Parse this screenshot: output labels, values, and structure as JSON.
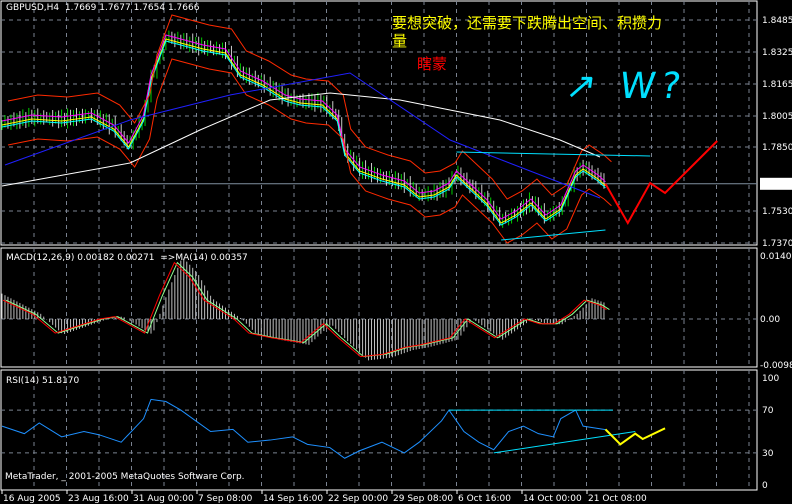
{
  "window": {
    "symbol_header": "GBPUSD,H4  1.7669 1.7677 1.7654 1.7666",
    "copyright": "MetaTrader, _ 2001-2005 MetaQuotes Software Corp."
  },
  "annotations": {
    "yellow_note_line1": "要想突破，还需要下跌腾出空间、积攒力",
    "yellow_note_line2": "量",
    "red_note": "瞎蒙",
    "cyan_scribble": "↗ W?"
  },
  "colors": {
    "background": "#000000",
    "grid": "#7a8290",
    "bollinger": "#ff2a00",
    "ma_long": "#ffffff",
    "trend_blue": "#2020ff",
    "channel": "#00e0ff",
    "projection_red": "#ff0000",
    "projection_yellow": "#ffff00",
    "rsi": "#1e90ff",
    "macd_main": "#ff0000",
    "macd_signal": "#90ff90",
    "macd_hist": "#c0c0c0"
  },
  "chart_data": [
    {
      "type": "line",
      "title": "GBPUSD,H4",
      "price_axis_ticks": [
        "1.8485",
        "1.8325",
        "1.8165",
        "1.8005",
        "1.7850",
        "1.7666",
        "1.7530",
        "1.7370"
      ],
      "current_price": "1.7666",
      "ylim": [
        1.737,
        1.8485
      ],
      "time_axis_ticks": [
        "16 Aug 2005",
        "23 Aug 16:00",
        "31 Aug 00:00",
        "7 Sep 08:00",
        "14 Sep 16:00",
        "22 Sep 00:00",
        "29 Sep 08:00",
        "6 Oct 16:00",
        "14 Oct 00:00",
        "21 Oct 08:00"
      ],
      "close_approx": [
        [
          0,
          1.797
        ],
        [
          4,
          1.8
        ],
        [
          8,
          1.799
        ],
        [
          12,
          1.801
        ],
        [
          15,
          1.795
        ],
        [
          17,
          1.786
        ],
        [
          19,
          1.8
        ],
        [
          20,
          1.82
        ],
        [
          22,
          1.84
        ],
        [
          24,
          1.838
        ],
        [
          27,
          1.835
        ],
        [
          30,
          1.833
        ],
        [
          32,
          1.822
        ],
        [
          35,
          1.817
        ],
        [
          38,
          1.81
        ],
        [
          40,
          1.808
        ],
        [
          43,
          1.807
        ],
        [
          45,
          1.8
        ],
        [
          46,
          1.783
        ],
        [
          48,
          1.774
        ],
        [
          51,
          1.77
        ],
        [
          54,
          1.767
        ],
        [
          56,
          1.761
        ],
        [
          58,
          1.762
        ],
        [
          60,
          1.766
        ],
        [
          61,
          1.772
        ],
        [
          63,
          1.765
        ],
        [
          65,
          1.758
        ],
        [
          67,
          1.748
        ],
        [
          69,
          1.752
        ],
        [
          71,
          1.758
        ],
        [
          73,
          1.75
        ],
        [
          75,
          1.755
        ],
        [
          77,
          1.772
        ],
        [
          78,
          1.775
        ],
        [
          80,
          1.77
        ],
        [
          81,
          1.7666
        ]
      ],
      "projection_red": [
        [
          81,
          1.7666
        ],
        [
          84,
          1.747
        ],
        [
          87,
          1.767
        ],
        [
          89,
          1.762
        ],
        [
          96,
          1.788
        ]
      ],
      "channel_upper": [
        [
          61,
          1.7825
        ],
        [
          87,
          1.7805
        ]
      ],
      "channel_lower": [
        [
          67,
          1.7385
        ],
        [
          81,
          1.7435
        ]
      ]
    },
    {
      "type": "bar",
      "title": "MACD(12,26,9) 0.00182 0.00271  =>MA(14) 0.00357",
      "ticks": [
        "0.01405",
        "0.00",
        "-0.0098"
      ],
      "ylim": [
        -0.0098,
        0.01405
      ],
      "macd_approx": [
        [
          0,
          0.004
        ],
        [
          4,
          0.001
        ],
        [
          7,
          -0.003
        ],
        [
          9,
          -0.002
        ],
        [
          13,
          0.0
        ],
        [
          15,
          0.0005
        ],
        [
          19,
          -0.003
        ],
        [
          21,
          0.005
        ],
        [
          23,
          0.012
        ],
        [
          25,
          0.009
        ],
        [
          27,
          0.004
        ],
        [
          31,
          0.0
        ],
        [
          33,
          -0.003
        ],
        [
          36,
          -0.004
        ],
        [
          40,
          -0.005
        ],
        [
          43,
          -0.001
        ],
        [
          45,
          -0.004
        ],
        [
          48,
          -0.008
        ],
        [
          51,
          -0.0075
        ],
        [
          54,
          -0.006
        ],
        [
          56,
          -0.0055
        ],
        [
          60,
          -0.004
        ],
        [
          62,
          0.0
        ],
        [
          64,
          -0.002
        ],
        [
          66,
          -0.004
        ],
        [
          68,
          -0.002
        ],
        [
          70,
          0.0
        ],
        [
          72,
          -0.001
        ],
        [
          74,
          -0.001
        ],
        [
          76,
          0.001
        ],
        [
          78,
          0.004
        ],
        [
          80,
          0.003
        ],
        [
          81,
          0.002
        ]
      ]
    },
    {
      "type": "line",
      "title": "RSI(14) 51.8170",
      "ticks": [
        "100",
        "70",
        "30",
        "0"
      ],
      "ylim": [
        0,
        100
      ],
      "rsi_approx": [
        [
          0,
          55
        ],
        [
          3,
          48
        ],
        [
          5,
          58
        ],
        [
          8,
          45
        ],
        [
          11,
          50
        ],
        [
          13,
          47
        ],
        [
          16,
          40
        ],
        [
          19,
          62
        ],
        [
          20,
          80
        ],
        [
          22,
          78
        ],
        [
          24,
          70
        ],
        [
          26,
          60
        ],
        [
          28,
          50
        ],
        [
          31,
          52
        ],
        [
          33,
          40
        ],
        [
          36,
          42
        ],
        [
          39,
          45
        ],
        [
          41,
          38
        ],
        [
          44,
          35
        ],
        [
          46,
          25
        ],
        [
          48,
          32
        ],
        [
          51,
          40
        ],
        [
          54,
          30
        ],
        [
          56,
          40
        ],
        [
          59,
          60
        ],
        [
          60,
          70
        ],
        [
          62,
          50
        ],
        [
          64,
          40
        ],
        [
          66,
          33
        ],
        [
          68,
          50
        ],
        [
          70,
          55
        ],
        [
          72,
          48
        ],
        [
          74,
          45
        ],
        [
          75,
          62
        ],
        [
          77,
          70
        ],
        [
          78,
          55
        ],
        [
          81,
          51.8
        ]
      ],
      "projection_yellow": [
        [
          81,
          52
        ],
        [
          83,
          38
        ],
        [
          85,
          48
        ],
        [
          86,
          43
        ],
        [
          89,
          53
        ]
      ],
      "level_line": [
        [
          60,
          70
        ],
        [
          82,
          70
        ]
      ],
      "trend_line": [
        [
          66,
          30
        ],
        [
          85,
          50
        ]
      ]
    }
  ]
}
